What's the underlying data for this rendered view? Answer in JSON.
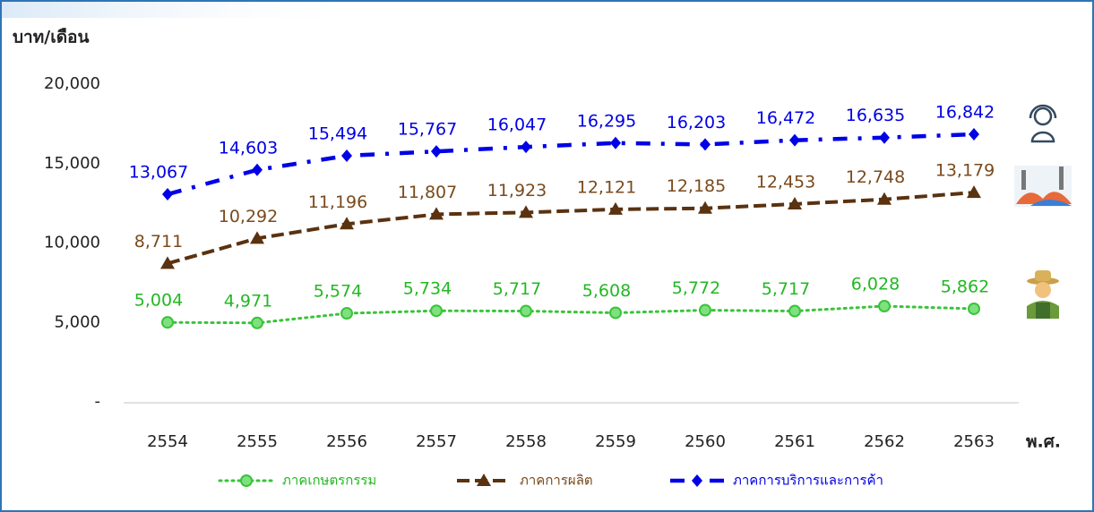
{
  "chart_data": {
    "type": "line",
    "y_label": "บาท/เดือน",
    "x_label": "พ.ศ.",
    "categories": [
      "2554",
      "2555",
      "2556",
      "2557",
      "2558",
      "2559",
      "2560",
      "2561",
      "2562",
      "2563"
    ],
    "ylim": [
      0,
      20000
    ],
    "yticks": [
      {
        "value": 0,
        "label": "-"
      },
      {
        "value": 5000,
        "label": "5,000"
      },
      {
        "value": 10000,
        "label": "10,000"
      },
      {
        "value": 15000,
        "label": "15,000"
      },
      {
        "value": 20000,
        "label": "20,000"
      }
    ],
    "grid": false,
    "legend": "bottom",
    "series": [
      {
        "name": "ภาคเกษตรกรรม",
        "color": "#39c439",
        "label_color": "#22b822",
        "marker": "circle",
        "dash": "dotted",
        "values": [
          5004,
          4971,
          5574,
          5734,
          5717,
          5608,
          5772,
          5717,
          6028,
          5862
        ],
        "value_labels": [
          "5,004",
          "4,971",
          "5,574",
          "5,734",
          "5,717",
          "5,608",
          "5,772",
          "5,717",
          "6,028",
          "5,862"
        ]
      },
      {
        "name": "ภาคการผลิต",
        "color": "#5a3210",
        "label_color": "#7a4a1c",
        "marker": "triangle",
        "dash": "dashed",
        "values": [
          8711,
          10292,
          11196,
          11807,
          11923,
          12121,
          12185,
          12453,
          12748,
          13179
        ],
        "value_labels": [
          "8,711",
          "10,292",
          "11,196",
          "11,807",
          "11,923",
          "12,121",
          "12,185",
          "12,453",
          "12,748",
          "13,179"
        ]
      },
      {
        "name": "ภาคการบริการและการค้า",
        "color": "#0000e6",
        "label_color": "#0000e6",
        "marker": "diamond",
        "dash": "dashdot",
        "values": [
          13067,
          14603,
          15494,
          15767,
          16047,
          16295,
          16203,
          16472,
          16635,
          16842
        ],
        "value_labels": [
          "13,067",
          "14,603",
          "15,494",
          "15,767",
          "16,047",
          "16,295",
          "16,203",
          "16,472",
          "16,635",
          "16,842"
        ]
      }
    ]
  }
}
